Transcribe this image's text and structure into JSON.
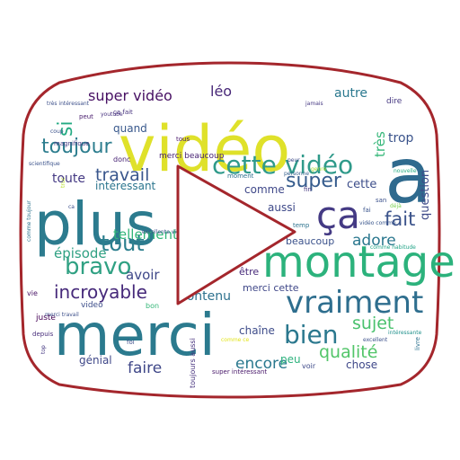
{
  "shape": {
    "outline_color": "#a4262c",
    "background": "#ffffff",
    "description_icon": "play-button-outline"
  },
  "words": [
    {
      "text": "vidéo",
      "color": "#dfe12a"
    },
    {
      "text": "plus",
      "color": "#2c7b8e"
    },
    {
      "text": "merci",
      "color": "#2b7a8e"
    },
    {
      "text": "a",
      "color": "#2f6a8e"
    },
    {
      "text": "montage",
      "color": "#2cb27c"
    },
    {
      "text": "vraiment",
      "color": "#2e6e8e"
    },
    {
      "text": "ça",
      "color": "#443a84"
    },
    {
      "text": "cette vidéo",
      "color": "#2f9a8a"
    },
    {
      "text": "bravo",
      "color": "#30a183"
    },
    {
      "text": "bien",
      "color": "#2b788e"
    },
    {
      "text": "tout",
      "color": "#2c7f8e"
    },
    {
      "text": "toujour",
      "color": "#2c7d8e"
    },
    {
      "text": "fait",
      "color": "#3b538b"
    },
    {
      "text": "super",
      "color": "#365c8d"
    },
    {
      "text": "incroyable",
      "color": "#46297a"
    },
    {
      "text": "travail",
      "color": "#39568c"
    },
    {
      "text": "sujet",
      "color": "#49c16d"
    },
    {
      "text": "qualité",
      "color": "#52c569"
    },
    {
      "text": "adore",
      "color": "#2a778e"
    },
    {
      "text": "si",
      "color": "#24ab83"
    },
    {
      "text": "super vidéo",
      "color": "#471063"
    },
    {
      "text": "léo",
      "color": "#482878"
    },
    {
      "text": "faire",
      "color": "#3f4788"
    },
    {
      "text": "encore",
      "color": "#2a788e"
    },
    {
      "text": "épisode",
      "color": "#30a183"
    },
    {
      "text": "avoir",
      "color": "#3f4889"
    },
    {
      "text": "tellement",
      "color": "#32b67a"
    },
    {
      "text": "contenu",
      "color": "#2d718e"
    },
    {
      "text": "toute",
      "color": "#443983"
    },
    {
      "text": "intéressant",
      "color": "#2b758e"
    },
    {
      "text": "autre",
      "color": "#2a788e"
    },
    {
      "text": "très",
      "color": "#35b779"
    },
    {
      "text": "trop",
      "color": "#3a538b"
    },
    {
      "text": "question",
      "color": "#3e4a89"
    },
    {
      "text": "cette",
      "color": "#3d4e8a"
    },
    {
      "text": "comme",
      "color": "#3f4889"
    },
    {
      "text": "aussi",
      "color": "#3e4989"
    },
    {
      "text": "beaucoup",
      "color": "#3b528b"
    },
    {
      "text": "merci cette",
      "color": "#3f4788"
    },
    {
      "text": "être",
      "color": "#472a7a"
    },
    {
      "text": "chaîne",
      "color": "#3e4c8a"
    },
    {
      "text": "peu",
      "color": "#2db27d"
    },
    {
      "text": "chose",
      "color": "#3f4889"
    },
    {
      "text": "génial",
      "color": "#3f4788"
    },
    {
      "text": "quand",
      "color": "#38588c"
    },
    {
      "text": "merci beaucoup",
      "color": "#482374"
    },
    {
      "text": "juste",
      "color": "#440154"
    },
    {
      "text": "video",
      "color": "#3d4e8a"
    },
    {
      "text": "bon",
      "color": "#35b779"
    },
    {
      "text": "toujours aussi",
      "color": "#46327e"
    },
    {
      "text": "super intéressant",
      "color": "#48186a"
    },
    {
      "text": "voir",
      "color": "#3e4a89"
    },
    {
      "text": "vie",
      "color": "#471365"
    },
    {
      "text": "depuis",
      "color": "#472c7a"
    },
    {
      "text": "foi",
      "color": "#3d4e8a"
    },
    {
      "text": "donc",
      "color": "#482475"
    },
    {
      "text": "magnifique",
      "color": "#443983"
    },
    {
      "text": "coup",
      "color": "#3b518b"
    },
    {
      "text": "ça fait",
      "color": "#46327e"
    },
    {
      "text": "très intéressant",
      "color": "#3c4f8a"
    },
    {
      "text": "youtube",
      "color": "#46317e"
    },
    {
      "text": "peut",
      "color": "#481b6d"
    },
    {
      "text": "tous",
      "color": "#481769"
    },
    {
      "text": "scientifique",
      "color": "#3b528b"
    },
    {
      "text": "excellente vidéo",
      "color": "#3d4d8a"
    },
    {
      "text": "passionnant",
      "color": "#efe51c"
    },
    {
      "text": "moment",
      "color": "#2d708e"
    },
    {
      "text": "genre",
      "color": "#a8db34"
    },
    {
      "text": "jamais",
      "color": "#453882"
    },
    {
      "text": "peur",
      "color": "#3e4a89"
    },
    {
      "text": "personne",
      "color": "#355f8d"
    },
    {
      "text": "fin",
      "color": "#453781"
    },
    {
      "text": "san",
      "color": "#3b518b"
    },
    {
      "text": "fai",
      "color": "#3a548c"
    },
    {
      "text": "déjà",
      "color": "#7ad151"
    },
    {
      "text": "temp",
      "color": "#2c728e"
    },
    {
      "text": "vidéo comme",
      "color": "#39568c"
    },
    {
      "text": "comme habitude",
      "color": "#20a386"
    },
    {
      "text": "nouvelle",
      "color": "#25ab82"
    },
    {
      "text": "dire",
      "color": "#453781"
    },
    {
      "text": "intéressante",
      "color": "#21918c"
    },
    {
      "text": "excellent",
      "color": "#3c508b"
    },
    {
      "text": "livre",
      "color": "#2c728e"
    },
    {
      "text": "top",
      "color": "#453882"
    },
    {
      "text": "merci travail",
      "color": "#3c4f8a"
    },
    {
      "text": "comme toujour",
      "color": "#2c738e"
    },
    {
      "text": "ca",
      "color": "#3c4f8a"
    },
    {
      "text": "truc",
      "color": "#b8de29"
    },
    {
      "text": "comme ce",
      "color": "#e2e418"
    }
  ]
}
